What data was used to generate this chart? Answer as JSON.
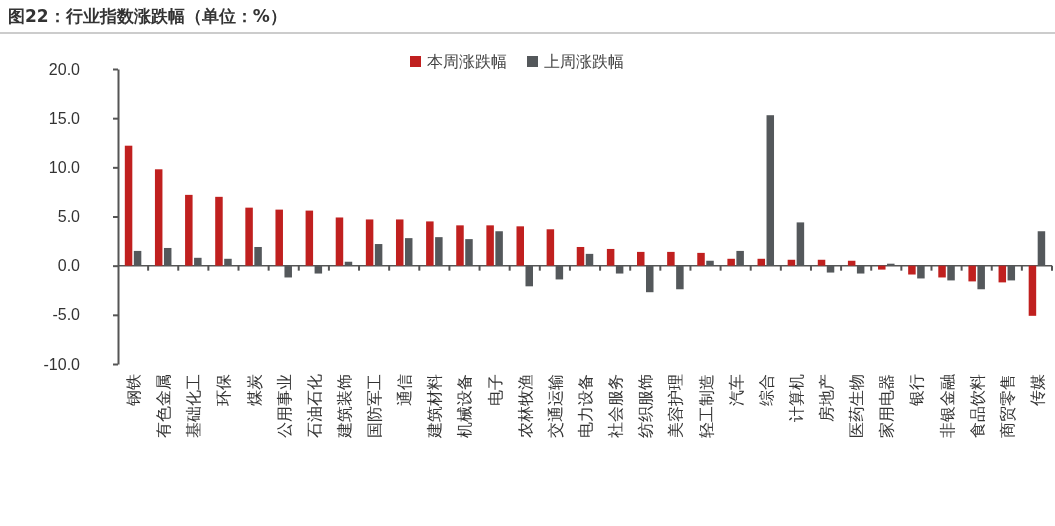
{
  "chart_data": {
    "type": "bar",
    "title": "图22：行业指数涨跌幅（单位：%）",
    "categories": [
      "钢铁",
      "有色金属",
      "基础化工",
      "环保",
      "煤炭",
      "公用事业",
      "石油石化",
      "建筑装饰",
      "国防军工",
      "通信",
      "建筑材料",
      "机械设备",
      "电子",
      "农林牧渔",
      "交通运输",
      "电力设备",
      "社会服务",
      "纺织服饰",
      "美容护理",
      "轻工制造",
      "汽车",
      "综合",
      "计算机",
      "房地产",
      "医药生物",
      "家用电器",
      "银行",
      "非银金融",
      "食品饮料",
      "商贸零售",
      "传媒"
    ],
    "series": [
      {
        "name": "本周涨跌幅",
        "color": "#c0201f",
        "values": [
          12.2,
          9.8,
          7.2,
          7.0,
          5.9,
          5.7,
          5.6,
          4.9,
          4.7,
          4.7,
          4.5,
          4.1,
          4.1,
          4.0,
          3.7,
          1.9,
          1.7,
          1.4,
          1.4,
          1.3,
          0.7,
          0.7,
          0.6,
          0.6,
          0.5,
          -0.4,
          -0.9,
          -1.2,
          -1.6,
          -1.7,
          -5.1
        ]
      },
      {
        "name": "上周涨跌幅",
        "color": "#54585b",
        "values": [
          1.5,
          1.8,
          0.8,
          0.7,
          1.9,
          -1.2,
          -0.8,
          0.4,
          2.2,
          2.8,
          2.9,
          2.7,
          3.5,
          -2.1,
          -1.4,
          1.2,
          -0.8,
          -2.7,
          -2.4,
          0.5,
          1.5,
          15.3,
          4.4,
          -0.7,
          -0.8,
          0.2,
          -1.3,
          -1.5,
          -2.4,
          -1.5,
          3.5
        ]
      }
    ],
    "ylim": [
      -10,
      20
    ],
    "yticks": [
      {
        "value": -10,
        "label": "-10.0"
      },
      {
        "value": -5,
        "label": "-5.0"
      },
      {
        "value": 0,
        "label": "0.0"
      },
      {
        "value": 5,
        "label": "5.0"
      },
      {
        "value": 10,
        "label": "10.0"
      },
      {
        "value": 15,
        "label": "15.0"
      },
      {
        "value": 20,
        "label": "20.0"
      }
    ],
    "legend": "top"
  }
}
